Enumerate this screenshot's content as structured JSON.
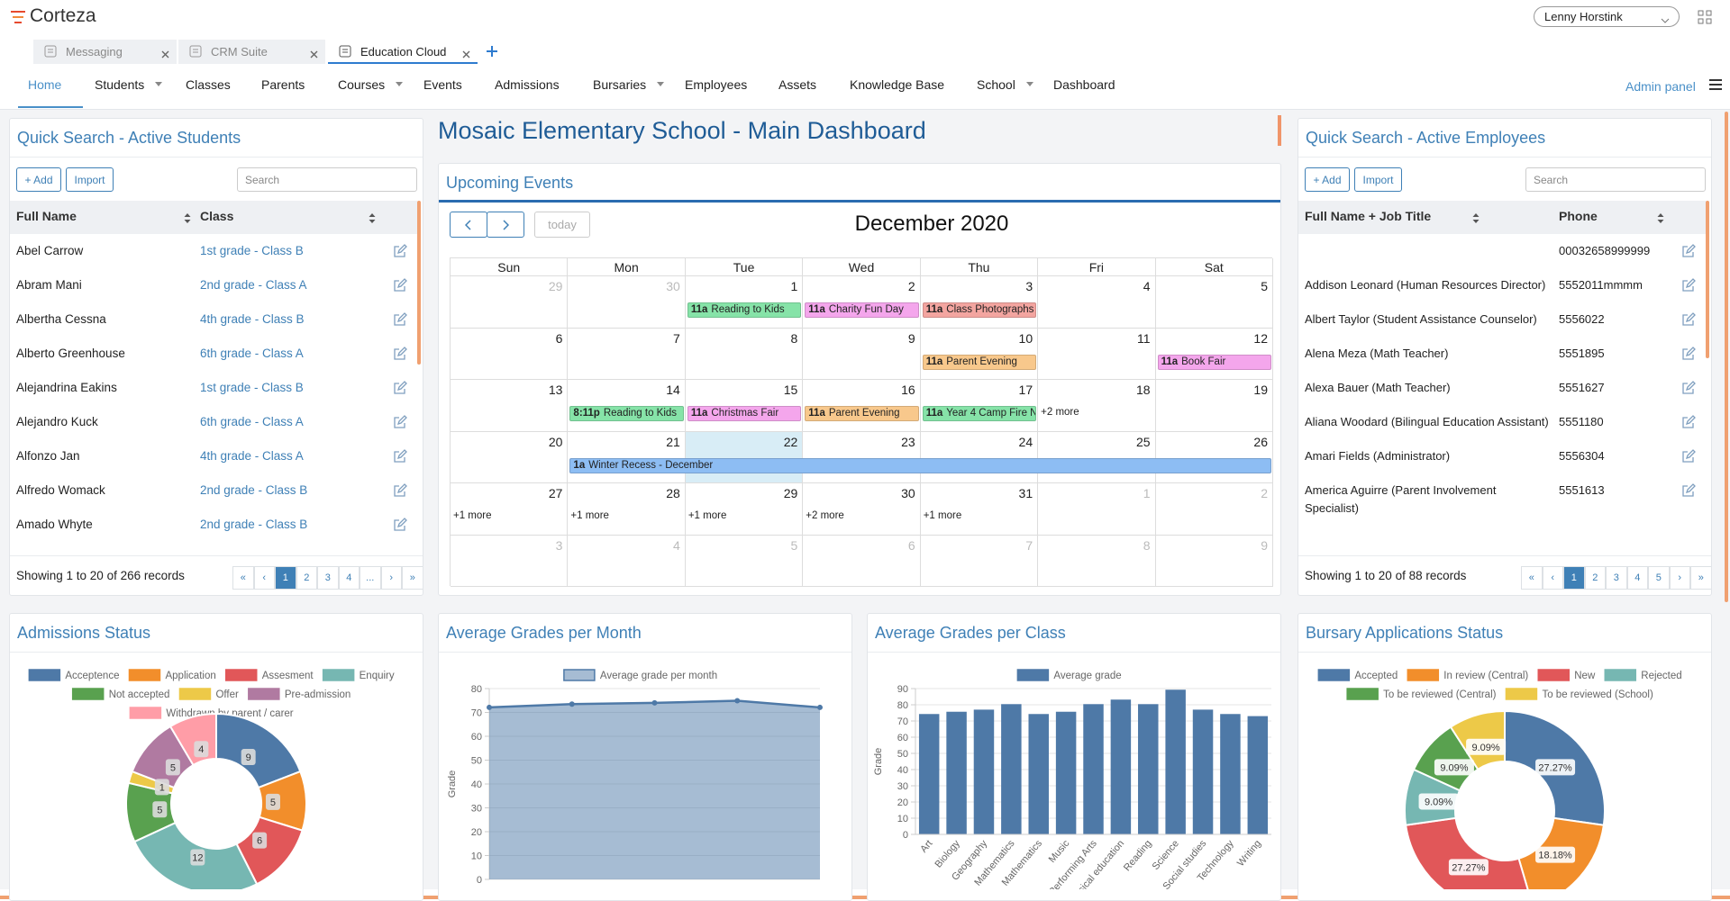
{
  "header": {
    "brand": "Corteza",
    "user": "Lenny Horstink",
    "tabs": [
      {
        "label": "Messaging",
        "active": false
      },
      {
        "label": "CRM Suite",
        "active": false
      },
      {
        "label": "Education Cloud",
        "active": true
      }
    ],
    "nav": [
      {
        "label": "Home",
        "active": true
      },
      {
        "label": "Students",
        "dropdown": true
      },
      {
        "label": "Classes"
      },
      {
        "label": "Parents"
      },
      {
        "label": "Courses",
        "dropdown": true
      },
      {
        "label": "Events"
      },
      {
        "label": "Admissions"
      },
      {
        "label": "Bursaries",
        "dropdown": true
      },
      {
        "label": "Employees"
      },
      {
        "label": "Assets"
      },
      {
        "label": "Knowledge Base"
      },
      {
        "label": "School",
        "dropdown": true
      },
      {
        "label": "Dashboard"
      }
    ],
    "admin": "Admin panel"
  },
  "dashboard_title": "Mosaic Elementary School - Main Dashboard",
  "students": {
    "title": "Quick Search - Active Students",
    "buttons": [
      "+ Add",
      "Import"
    ],
    "search": "Search",
    "columns": [
      "Full Name",
      "Class"
    ],
    "rows": [
      [
        "Abel Carrow",
        "1st grade - Class B"
      ],
      [
        "Abram Mani",
        "2nd grade - Class A"
      ],
      [
        "Albertha Cessna",
        "4th grade - Class B"
      ],
      [
        "Alberto Greenhouse",
        "6th grade - Class A"
      ],
      [
        "Alejandrina Eakins",
        "1st grade - Class B"
      ],
      [
        "Alejandro Kuck",
        "6th grade - Class A"
      ],
      [
        "Alfonzo Jan",
        "4th grade - Class A"
      ],
      [
        "Alfredo Womack",
        "2nd grade - Class B"
      ],
      [
        "Amado Whyte",
        "2nd grade - Class B"
      ]
    ],
    "footer": "Showing 1 to 20 of 266 records",
    "pager": [
      "«",
      "‹",
      "1",
      "2",
      "3",
      "4",
      "...",
      "›",
      "»"
    ],
    "pager_active": 2
  },
  "events": {
    "title": "Upcoming Events",
    "month": "December 2020",
    "today": "today",
    "weekdays": [
      "Sun",
      "Mon",
      "Tue",
      "Wed",
      "Thu",
      "Fri",
      "Sat"
    ],
    "weeks": [
      {
        "days": [
          {
            "day": 29,
            "other_month": true
          },
          {
            "day": 30,
            "other_month": true
          },
          {
            "day": 1
          },
          {
            "day": 2
          },
          {
            "day": 3
          },
          {
            "day": 4
          },
          {
            "day": 5
          }
        ],
        "events": [
          {
            "col": 2,
            "time": "11a",
            "title": "Reading to Kids",
            "color": "#86e3a8"
          },
          {
            "col": 3,
            "time": "11a",
            "title": "Charity Fun Day",
            "color": "#f4a6ec"
          },
          {
            "col": 4,
            "time": "11a",
            "title": "Class Photographs",
            "color": "#f3a5a0"
          }
        ]
      },
      {
        "days": [
          {
            "day": 6
          },
          {
            "day": 7
          },
          {
            "day": 8
          },
          {
            "day": 9
          },
          {
            "day": 10
          },
          {
            "day": 11
          },
          {
            "day": 12
          }
        ],
        "events": [
          {
            "col": 4,
            "time": "11a",
            "title": "Parent Evening",
            "color": "#f8c88c"
          },
          {
            "col": 6,
            "time": "11a",
            "title": "Book Fair",
            "color": "#f4a6ec"
          }
        ]
      },
      {
        "days": [
          {
            "day": 13
          },
          {
            "day": 14
          },
          {
            "day": 15
          },
          {
            "day": 16
          },
          {
            "day": 17
          },
          {
            "day": 18
          },
          {
            "day": 19
          }
        ],
        "events": [
          {
            "col": 1,
            "time": "8:11p",
            "title": "Reading to Kids",
            "color": "#86e3a8"
          },
          {
            "col": 2,
            "time": "11a",
            "title": "Christmas Fair",
            "color": "#f4a6ec"
          },
          {
            "col": 3,
            "time": "11a",
            "title": "Parent Evening",
            "color": "#f8c88c"
          },
          {
            "col": 4,
            "time": "11a",
            "title": "Year 4 Camp Fire N",
            "color": "#86e3a8"
          }
        ],
        "more": [
          {
            "col": 5,
            "label": "+2 more"
          }
        ]
      },
      {
        "days": [
          {
            "day": 20
          },
          {
            "day": 21
          },
          {
            "day": 22,
            "today": true
          },
          {
            "day": 23
          },
          {
            "day": 24
          },
          {
            "day": 25
          },
          {
            "day": 26
          }
        ],
        "events": [
          {
            "col": 1,
            "span": 6,
            "time": "1a",
            "title": "Winter Recess - December",
            "color": "#8dbdf3"
          }
        ]
      },
      {
        "days": [
          {
            "day": 27
          },
          {
            "day": 28
          },
          {
            "day": 29
          },
          {
            "day": 30
          },
          {
            "day": 31
          },
          {
            "day": 1,
            "other_month": true
          },
          {
            "day": 2,
            "other_month": true
          }
        ],
        "events": [],
        "more": [
          {
            "col": 0,
            "label": "+1 more"
          },
          {
            "col": 1,
            "label": "+1 more"
          },
          {
            "col": 2,
            "label": "+1 more"
          },
          {
            "col": 3,
            "label": "+2 more"
          },
          {
            "col": 4,
            "label": "+1 more"
          }
        ]
      },
      {
        "days": [
          {
            "day": 3,
            "other_month": true
          },
          {
            "day": 4,
            "other_month": true
          },
          {
            "day": 5,
            "other_month": true
          },
          {
            "day": 6,
            "other_month": true
          },
          {
            "day": 7,
            "other_month": true
          },
          {
            "day": 8,
            "other_month": true
          },
          {
            "day": 9,
            "other_month": true
          }
        ],
        "events": []
      }
    ]
  },
  "employees": {
    "title": "Quick Search - Active Employees",
    "buttons": [
      "+ Add",
      "Import"
    ],
    "search": "Search",
    "columns": [
      "Full Name + Job Title",
      "Phone"
    ],
    "rows": [
      [
        null,
        "00032658999999"
      ],
      [
        "Addison Leonard (Human Resources Director)",
        "5552011mmmm"
      ],
      [
        "Albert Taylor (Student Assistance Counselor)",
        "5556022"
      ],
      [
        "Alena Meza (Math Teacher)",
        "5551895"
      ],
      [
        "Alexa Bauer (Math Teacher)",
        "5551627"
      ],
      [
        "Aliana Woodard (Bilingual Education Assistant)",
        "5551180"
      ],
      [
        "Amari Fields (Administrator)",
        "5556304"
      ],
      [
        "America Aguirre (Parent Involvement Specialist)",
        "5551613"
      ]
    ],
    "footer": "Showing 1 to 20 of 88 records",
    "pager": [
      "«",
      "‹",
      "1",
      "2",
      "3",
      "4",
      "5",
      "›",
      "»"
    ],
    "pager_active": 2
  },
  "chart_data": [
    {
      "type": "doughnut",
      "title": "Admissions Status",
      "categories": [
        "Acceptence",
        "Application",
        "Assesment",
        "Enquiry",
        "Not accepted",
        "Offer",
        "Pre-admission",
        "Withdrawn by parent / carer"
      ],
      "values": [
        9,
        5,
        6,
        12,
        5,
        1,
        5,
        4
      ],
      "colors": [
        "#4e79a7",
        "#f28e2b",
        "#e15759",
        "#76b7b2",
        "#59a14f",
        "#edc948",
        "#b07aa1",
        "#ff9da7"
      ]
    },
    {
      "type": "line",
      "title": "Average Grades per Month",
      "categories": [
        null,
        null,
        null,
        null,
        null
      ],
      "series": [
        {
          "name": "Average grade per month",
          "color": "#4e79a7",
          "values": [
            72.1,
            73.5,
            74,
            74.9,
            72.1
          ]
        }
      ],
      "ylabel": "Grade",
      "ylim": [
        0,
        80
      ],
      "yticks": [
        0,
        10,
        20,
        30,
        40,
        50,
        60,
        70,
        80
      ],
      "grid": true
    },
    {
      "type": "bar",
      "title": "Average Grades per Class",
      "categories": [
        "Art",
        "Biology",
        "Geography",
        "Mathematics",
        "Mathematics",
        "Music",
        "Performing Arts",
        "Physical education",
        "Reading",
        "Science",
        "Social studies",
        "Technology",
        "Writing"
      ],
      "series": [
        {
          "name": "Average grade",
          "color": "#4e79a7",
          "values": [
            74.3,
            75.7,
            77,
            80.4,
            74.3,
            75.7,
            80.4,
            83.2,
            80.4,
            89.3,
            77,
            74.3,
            73
          ]
        }
      ],
      "ylabel": "Grade",
      "ylim": [
        0,
        90
      ],
      "yticks": [
        0,
        10,
        20,
        30,
        40,
        50,
        60,
        70,
        80,
        90
      ],
      "grid": true
    },
    {
      "type": "doughnut",
      "title": "Bursary Applications Status",
      "categories": [
        "Accepted",
        "In review (Central)",
        "New",
        "Rejected",
        "To be reviewed (Central)",
        "To be reviewed (School)"
      ],
      "values": [
        27.27,
        18.18,
        27.27,
        9.09,
        9.09,
        9.09
      ],
      "value_labels": [
        "27.27%",
        "18.18%",
        "27.27%",
        "9.09%",
        "9.09%",
        "9.09%"
      ],
      "colors": [
        "#4e79a7",
        "#f28e2b",
        "#e15759",
        "#76b7b2",
        "#59a14f",
        "#edc948"
      ]
    }
  ]
}
